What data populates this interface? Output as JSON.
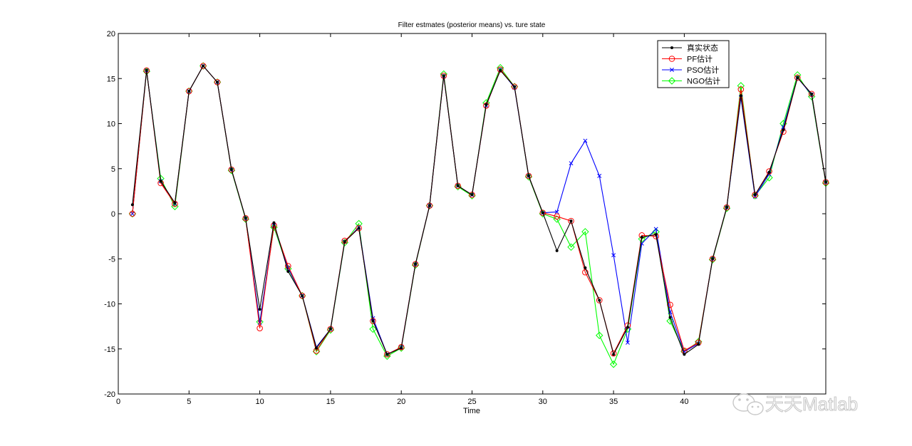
{
  "chart_data": {
    "type": "line",
    "title": "Filter estmates (posterior means) vs. ture state",
    "xlabel": "Time",
    "ylabel": "",
    "xlim": [
      0,
      50
    ],
    "ylim": [
      -20,
      20
    ],
    "xticks": [
      0,
      5,
      10,
      15,
      20,
      25,
      30,
      35,
      40
    ],
    "yticks": [
      -20,
      -15,
      -10,
      -5,
      0,
      5,
      10,
      15,
      20
    ],
    "grid": false,
    "legend_position": "top-right",
    "x": [
      1,
      2,
      3,
      4,
      5,
      6,
      7,
      8,
      9,
      10,
      11,
      12,
      13,
      14,
      15,
      16,
      17,
      18,
      19,
      20,
      21,
      22,
      23,
      24,
      25,
      26,
      27,
      28,
      29,
      30,
      31,
      32,
      33,
      34,
      35,
      36,
      37,
      38,
      39,
      40,
      41,
      42,
      43,
      44,
      45,
      46,
      47,
      48,
      49,
      50
    ],
    "series": [
      {
        "name": "真实状态",
        "color": "#000000",
        "marker": "dot",
        "values": [
          1,
          15.9,
          3.6,
          1.2,
          13.6,
          16.4,
          14.6,
          4.9,
          -0.5,
          -10.6,
          -1.0,
          -6.4,
          -9.1,
          -14.9,
          -12.8,
          -3.1,
          -1.6,
          -11.9,
          -15.6,
          -14.9,
          -5.6,
          0.9,
          15.3,
          3.1,
          2.1,
          12.1,
          15.9,
          14.1,
          4.2,
          0.1,
          -4.1,
          -0.8,
          -6.0,
          -9.6,
          -15.6,
          -12.6,
          -2.6,
          -2.3,
          -11.5,
          -15.6,
          -14.5,
          -5.0,
          0.7,
          13.1,
          2.1,
          4.6,
          9.3,
          15.1,
          13.3,
          3.5
        ]
      },
      {
        "name": "PF估计",
        "color": "#ff0000",
        "marker": "circle",
        "values": [
          0,
          15.9,
          3.4,
          1.1,
          13.6,
          16.4,
          14.6,
          4.9,
          -0.5,
          -12.7,
          -1.3,
          -5.8,
          -9.1,
          -15.2,
          -12.8,
          -3.0,
          -1.6,
          -11.9,
          -15.6,
          -14.8,
          -5.6,
          0.9,
          15.3,
          3.1,
          2.1,
          12.0,
          16.0,
          14.1,
          4.2,
          0.1,
          -0.3,
          -0.8,
          -6.5,
          -9.6,
          -15.5,
          -12.4,
          -2.4,
          -2.5,
          -10.1,
          -15.2,
          -14.3,
          -5.0,
          0.7,
          13.8,
          2.1,
          4.7,
          9.1,
          15.1,
          13.3,
          3.5
        ]
      },
      {
        "name": "PSO估计",
        "color": "#0000ff",
        "marker": "x",
        "values": [
          0,
          15.9,
          3.6,
          1.1,
          13.6,
          16.4,
          14.6,
          4.9,
          -0.5,
          -12.1,
          -1.3,
          -6.0,
          -9.1,
          -14.8,
          -12.8,
          -3.1,
          -1.5,
          -11.6,
          -15.6,
          -14.8,
          -5.6,
          0.9,
          15.3,
          3.1,
          2.1,
          12.0,
          16.0,
          14.0,
          4.2,
          0.1,
          0.2,
          5.6,
          8.1,
          4.2,
          -4.6,
          -14.3,
          -3.3,
          -1.7,
          -10.9,
          -15.3,
          -14.4,
          -5.0,
          0.7,
          12.9,
          1.9,
          4.4,
          9.6,
          15.1,
          13.2,
          3.5
        ]
      },
      {
        "name": "NGO估计",
        "color": "#00ff00",
        "marker": "diamond",
        "values": [
          0,
          15.8,
          3.9,
          0.8,
          13.6,
          16.4,
          14.6,
          4.8,
          -0.6,
          -12.0,
          -1.5,
          -6.1,
          -9.1,
          -15.3,
          -12.9,
          -3.2,
          -1.1,
          -12.8,
          -15.8,
          -14.9,
          -5.7,
          0.9,
          15.5,
          3.0,
          2.0,
          12.3,
          16.2,
          14.1,
          4.1,
          0.0,
          -0.6,
          -3.7,
          -2.0,
          -13.5,
          -16.7,
          -12.8,
          -2.8,
          -2.0,
          -11.9,
          -15.3,
          -14.2,
          -5.1,
          0.6,
          14.2,
          2.0,
          4.0,
          10.0,
          15.4,
          13.0,
          3.4
        ]
      }
    ]
  },
  "watermark": {
    "text": "天天Matlab",
    "icon": "wechat-icon"
  }
}
